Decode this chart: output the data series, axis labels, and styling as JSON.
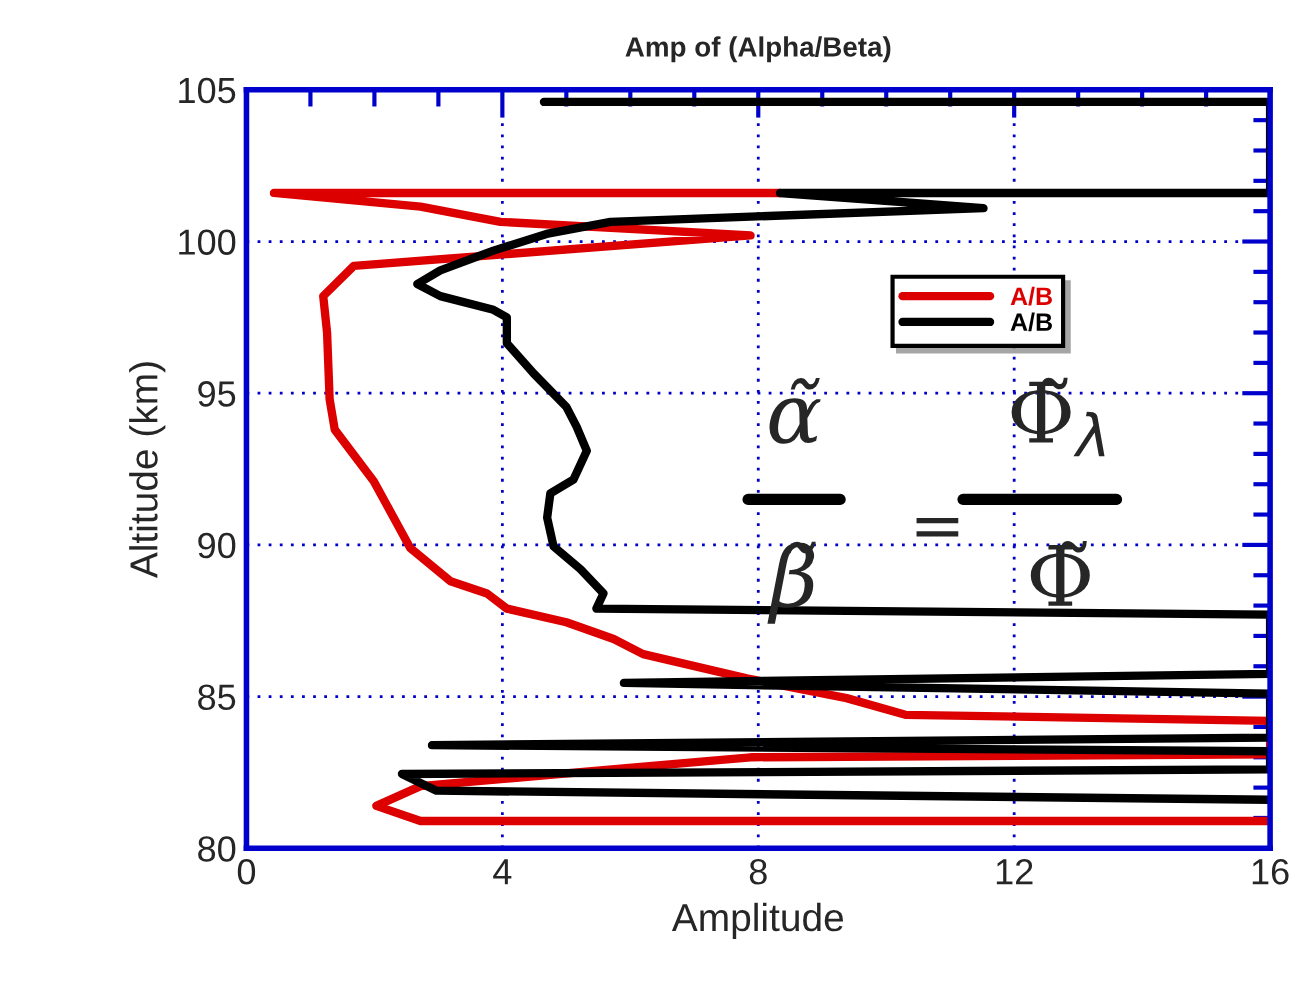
{
  "chart_data": {
    "type": "line",
    "title": "Amp of (Alpha/Beta)",
    "xlabel": "Amplitude",
    "ylabel": "Altitude (km)",
    "series": [
      {
        "name": "A/B",
        "color": "#dd0000",
        "x": [
          8.34,
          0.43,
          2.72,
          3.97,
          7.88,
          1.68,
          1.2,
          1.26,
          1.3,
          1.38,
          1.99,
          2.56,
          3.19,
          3.76,
          4.07,
          5.0,
          5.74,
          6.2,
          7.82,
          9.38,
          10.3,
          16,
          16,
          7.88,
          2.72,
          2.03,
          2.72,
          16
        ],
        "values": [
          101.6,
          101.6,
          101.15,
          100.65,
          100.2,
          99.2,
          98.2,
          97.0,
          94.8,
          93.8,
          92.1,
          89.9,
          88.8,
          88.4,
          87.9,
          87.45,
          86.9,
          86.4,
          85.6,
          84.95,
          84.4,
          84.2,
          83.1,
          83.0,
          82.05,
          81.4,
          80.9,
          80.9
        ]
      },
      {
        "name": "A/B",
        "color": "#000000",
        "x": [
          4.65,
          16,
          16,
          8.34,
          11.52,
          5.69,
          4.69,
          3.86,
          3.03,
          2.67,
          3.03,
          3.86,
          4.07,
          4.07,
          4.49,
          5.0,
          5.16,
          5.32,
          5.11,
          4.75,
          4.7,
          4.8,
          5.22,
          5.58,
          5.47,
          16,
          16,
          5.9,
          16,
          16,
          2.9,
          16,
          16,
          2.43,
          2.97,
          16
        ],
        "values": [
          104.6,
          104.6,
          101.6,
          101.6,
          101.1,
          100.65,
          100.25,
          99.7,
          99.05,
          98.6,
          98.2,
          97.75,
          97.5,
          96.65,
          95.65,
          94.55,
          93.9,
          93.1,
          92.15,
          91.7,
          90.9,
          89.95,
          89.2,
          88.4,
          87.9,
          87.7,
          85.75,
          85.45,
          85.1,
          83.65,
          83.4,
          83.2,
          82.6,
          82.45,
          81.9,
          81.6
        ]
      }
    ],
    "xlim": [
      0,
      16
    ],
    "xticks": [
      0,
      4,
      8,
      12,
      16
    ],
    "ylim": [
      80,
      105
    ],
    "yticks": [
      80,
      85,
      90,
      95,
      100,
      105
    ],
    "grid": true,
    "legend": "top right",
    "annotations": [
      "α̃",
      "β̃",
      "=",
      "Φ̃$_{λ}$",
      "Φ̃"
    ]
  }
}
